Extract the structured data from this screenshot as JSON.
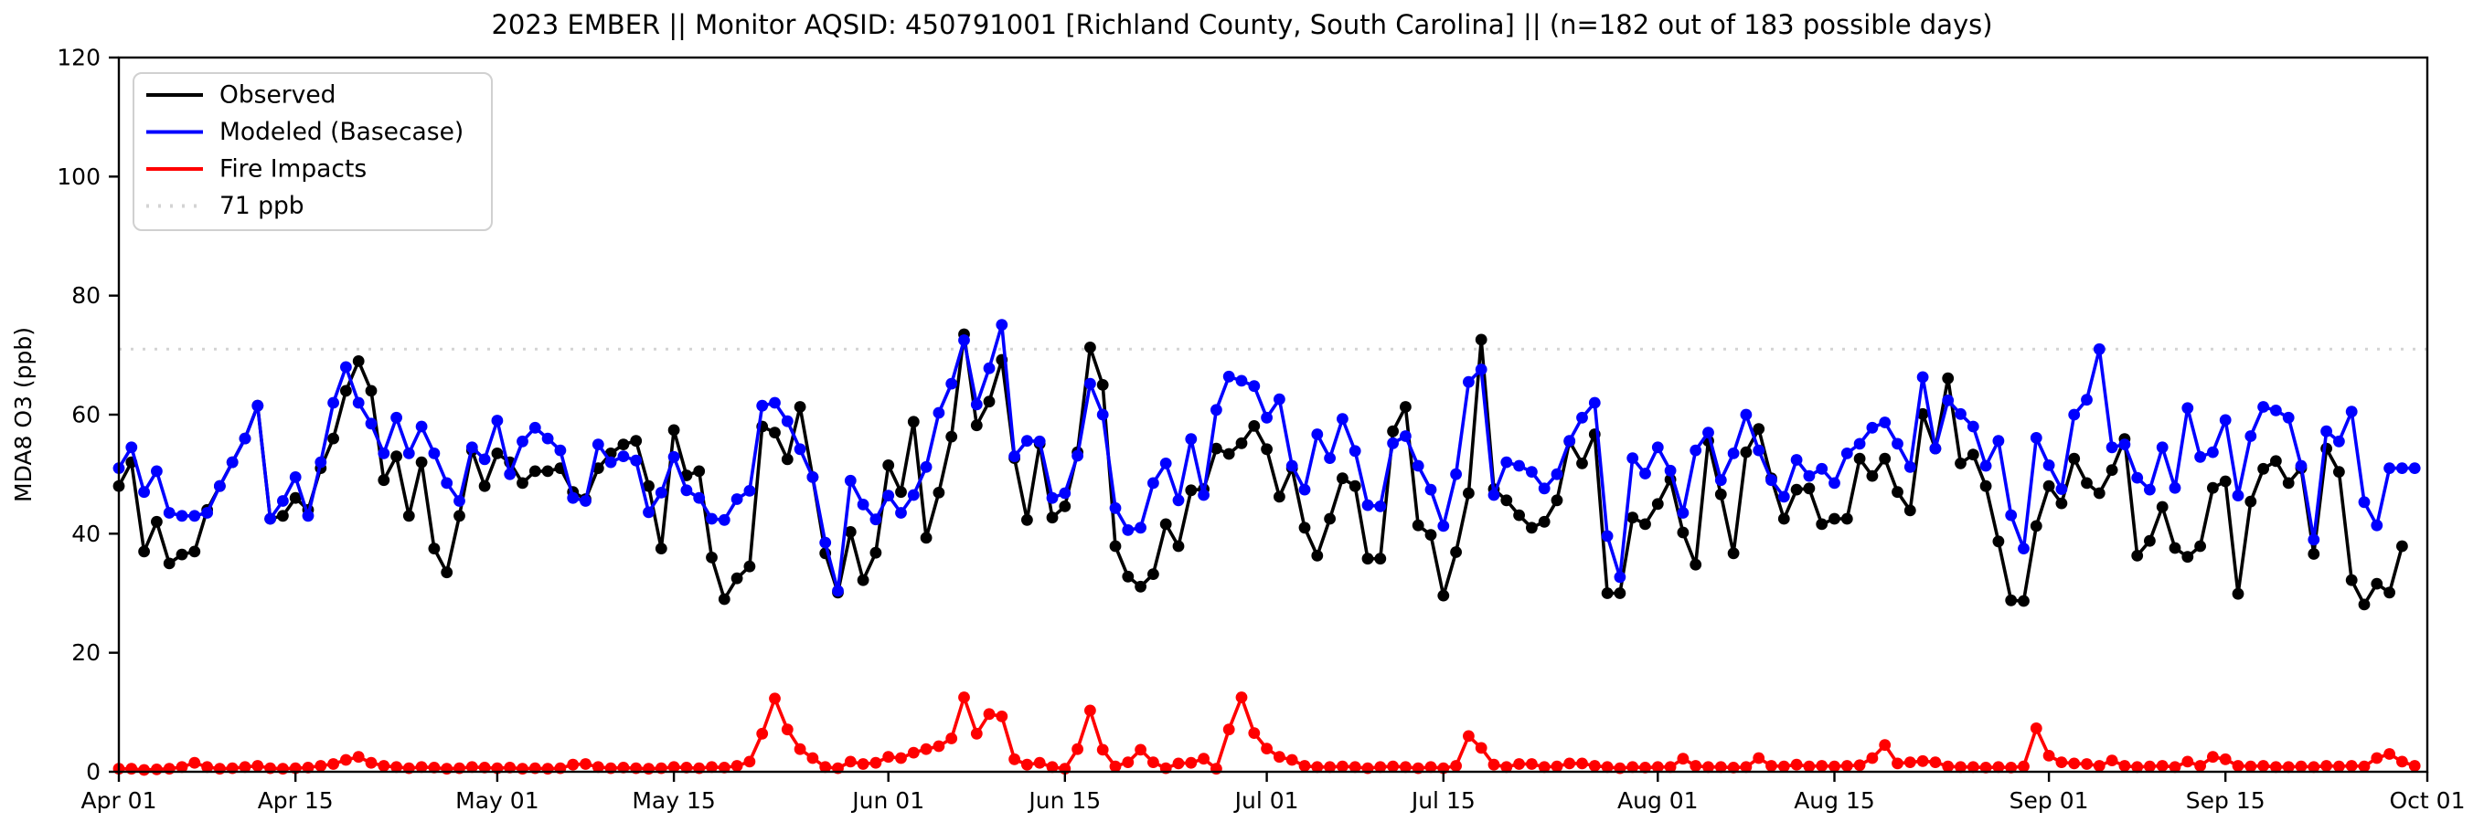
{
  "title": "2023 EMBER || Monitor AQSID: 450791001 [Richland County, South Carolina] || (n=182 out of 183 possible days)",
  "legend": {
    "entries": [
      {
        "label": "Observed",
        "color": "#000000",
        "style": "solid"
      },
      {
        "label": "Modeled (Basecase)",
        "color": "#0000ff",
        "style": "solid"
      },
      {
        "label": "Fire Impacts",
        "color": "#ff0000",
        "style": "solid"
      },
      {
        "label": "71 ppb",
        "color": "#d3d3d3",
        "style": "dotted"
      }
    ]
  },
  "chart_data": {
    "type": "line",
    "title": "2023 EMBER || Monitor AQSID: 450791001 [Richland County, South Carolina] || (n=182 out of 183 possible days)",
    "xlabel": "",
    "ylabel": "MDA8 O3 (ppb)",
    "ylim": [
      0,
      120
    ],
    "y_ticks": [
      0,
      20,
      40,
      60,
      80,
      100,
      120
    ],
    "n_days": 183,
    "x_start": "Apr 01",
    "x_end": "Oct 01",
    "x_ticks": [
      {
        "day": 0,
        "label": "Apr 01"
      },
      {
        "day": 14,
        "label": "Apr 15"
      },
      {
        "day": 30,
        "label": "May 01"
      },
      {
        "day": 44,
        "label": "May 15"
      },
      {
        "day": 61,
        "label": "Jun 01"
      },
      {
        "day": 75,
        "label": "Jun 15"
      },
      {
        "day": 91,
        "label": "Jul 01"
      },
      {
        "day": 105,
        "label": "Jul 15"
      },
      {
        "day": 122,
        "label": "Aug 01"
      },
      {
        "day": 136,
        "label": "Aug 15"
      },
      {
        "day": 153,
        "label": "Sep 01"
      },
      {
        "day": 167,
        "label": "Sep 15"
      },
      {
        "day": 183,
        "label": "Oct 01"
      }
    ],
    "reference_line": {
      "label": "71 ppb",
      "value": 71,
      "color": "#d3d3d3"
    },
    "grid": false,
    "legend_position": "upper left",
    "series": [
      {
        "name": "Observed",
        "color": "#000000",
        "values": [
          48,
          52,
          37,
          42,
          35,
          36.5,
          37,
          44,
          48,
          52,
          56,
          61.5,
          42.5,
          43,
          46,
          44,
          51,
          56,
          64,
          69,
          64,
          49,
          53,
          43,
          52,
          37.5,
          33.5,
          43,
          54,
          48,
          53.5,
          52,
          48.5,
          50.5,
          50.5,
          51,
          47,
          45.8,
          51,
          53.5,
          55,
          55.6,
          48,
          37.5,
          57.4,
          49.8,
          50.5,
          36,
          29,
          32.5,
          34.5,
          58,
          57,
          52.5,
          61.3,
          49.5,
          36.7,
          30.1,
          40.3,
          32.2,
          36.8,
          51.5,
          47,
          58.8,
          39.3,
          46.9,
          56.3,
          73.5,
          58.2,
          62.2,
          69.2,
          52.7,
          42.3,
          55.1,
          42.7,
          44.6,
          53.7,
          71.3,
          65,
          37.9,
          32.8,
          31.1,
          33.2,
          41.6,
          37.9,
          47.3,
          47.5,
          54.3,
          53.4,
          55.2,
          58.1,
          54.2,
          46.2,
          51,
          41,
          36.3,
          42.5,
          49.3,
          48,
          35.8,
          35.8,
          57.2,
          61.3,
          41.4,
          39.8,
          29.6,
          36.9,
          46.8,
          72.6,
          47.5,
          45.6,
          43.1,
          41,
          42,
          45.6,
          55.5,
          51.8,
          56.7,
          30,
          30,
          42.7,
          41.6,
          45,
          49.1,
          40.2,
          34.8,
          55.6,
          46.6,
          36.7,
          53.7,
          57.6,
          49.3,
          42.5,
          47.4,
          47.6,
          41.6,
          42.5,
          42.5,
          52.6,
          49.7,
          52.6,
          47,
          43.9,
          60.1,
          54.3,
          66.1,
          51.8,
          53.3,
          48,
          38.7,
          28.8,
          28.7,
          41.3,
          48,
          45.1,
          52.6,
          48.5,
          46.8,
          50.7,
          55.9,
          36.3,
          38.8,
          44.5,
          37.6,
          36.1,
          37.9,
          47.7,
          48.8,
          29.9,
          45.4,
          50.9,
          52.2,
          48.5,
          51,
          36.6,
          54.3,
          50.4,
          32.2,
          28.1,
          31.6,
          30.1,
          37.9,
          null
        ]
      },
      {
        "name": "Modeled (Basecase)",
        "color": "#0000ff",
        "values": [
          51,
          54.5,
          47,
          50.5,
          43.5,
          43,
          43,
          43.5,
          48,
          52,
          56,
          61.5,
          42.5,
          45.5,
          49.5,
          43,
          52,
          62,
          68,
          62,
          58.5,
          53.5,
          59.5,
          53.5,
          58,
          53.5,
          48.5,
          45.5,
          54.5,
          52.5,
          59,
          50,
          55.5,
          57.8,
          56,
          54,
          46,
          45.5,
          55,
          52,
          53,
          52.3,
          43.6,
          46.9,
          52.9,
          47.3,
          46,
          42.5,
          42.3,
          45.8,
          47.2,
          61.5,
          62,
          58.9,
          54.2,
          49.5,
          38.5,
          30.4,
          48.9,
          44.9,
          42.4,
          46.4,
          43.5,
          46.5,
          51.2,
          60.3,
          65.2,
          72.5,
          61.7,
          67.8,
          75.1,
          53,
          55.6,
          55.5,
          46,
          46.8,
          53.1,
          65.2,
          60,
          44.3,
          40.6,
          41,
          48.5,
          51.8,
          45.6,
          55.9,
          46.5,
          60.8,
          66.4,
          65.7,
          64.8,
          59.5,
          62.6,
          51.4,
          47.4,
          56.7,
          52.7,
          59.3,
          53.9,
          44.8,
          44.6,
          55.2,
          56.4,
          51.4,
          47.4,
          41.3,
          50,
          65.5,
          67.6,
          46.5,
          52,
          51.4,
          50.4,
          47.6,
          50,
          55.6,
          59.5,
          62,
          39.6,
          32.7,
          52.7,
          50.1,
          54.5,
          50.6,
          43.5,
          54,
          57,
          49,
          53.5,
          60,
          54,
          49,
          46.2,
          52.4,
          49.7,
          50.9,
          48.5,
          53.5,
          55.1,
          57.8,
          58.7,
          55.1,
          51.2,
          66.3,
          54.3,
          62.4,
          60.1,
          58,
          51.4,
          55.6,
          43.1,
          37.5,
          56.1,
          51.5,
          47.5,
          60,
          62.5,
          71,
          54.5,
          55,
          49.4,
          47.4,
          54.5,
          47.7,
          61.1,
          52.9,
          53.7,
          59.1,
          46.4,
          56.4,
          61.3,
          60.7,
          59.5,
          51.4,
          39,
          57.2,
          55.5,
          60.5,
          45.3,
          41.4,
          51,
          51,
          51
        ]
      },
      {
        "name": "Fire Impacts",
        "color": "#ff0000",
        "values": [
          0.5,
          0.5,
          0.3,
          0.4,
          0.5,
          0.8,
          1.5,
          0.8,
          0.5,
          0.6,
          0.8,
          1.0,
          0.6,
          0.5,
          0.6,
          0.7,
          1.0,
          1.3,
          2.0,
          2.5,
          1.5,
          1.0,
          0.8,
          0.6,
          0.8,
          0.7,
          0.5,
          0.6,
          0.8,
          0.7,
          0.6,
          0.7,
          0.5,
          0.6,
          0.5,
          0.6,
          1.2,
          1.3,
          0.8,
          0.6,
          0.7,
          0.6,
          0.5,
          0.6,
          0.8,
          0.7,
          0.6,
          0.8,
          0.7,
          1.0,
          1.7,
          6.4,
          12.3,
          7.1,
          3.8,
          2.3,
          0.8,
          0.6,
          1.7,
          1.3,
          1.5,
          2.5,
          2.3,
          3.2,
          3.8,
          4.3,
          5.6,
          12.5,
          6.4,
          9.7,
          9.3,
          2.1,
          1.2,
          1.5,
          0.8,
          0.5,
          3.8,
          10.3,
          3.7,
          0.9,
          1.6,
          3.7,
          1.6,
          0.6,
          1.4,
          1.5,
          2.2,
          0.5,
          7.1,
          12.5,
          6.5,
          3.9,
          2.5,
          2.0,
          1.0,
          0.8,
          0.8,
          0.9,
          0.8,
          0.6,
          0.8,
          0.9,
          0.8,
          0.6,
          0.8,
          0.6,
          1.0,
          6.0,
          4.0,
          1.2,
          0.8,
          1.3,
          1.3,
          0.8,
          0.9,
          1.4,
          1.4,
          1.0,
          0.8,
          0.6,
          0.8,
          0.7,
          0.8,
          0.8,
          2.2,
          1.0,
          0.8,
          0.8,
          0.7,
          0.8,
          2.3,
          1.0,
          0.9,
          1.2,
          0.9,
          1.0,
          0.9,
          1.0,
          1.1,
          2.3,
          4.5,
          1.4,
          1.6,
          1.8,
          1.6,
          0.9,
          0.8,
          0.8,
          0.7,
          0.8,
          0.7,
          0.9,
          7.3,
          2.7,
          1.6,
          1.4,
          1.3,
          1.0,
          1.9,
          1.0,
          0.8,
          0.9,
          1.0,
          0.8,
          1.7,
          1.0,
          2.5,
          2.1,
          1.0,
          0.9,
          1.0,
          0.8,
          0.8,
          0.9,
          0.8,
          1.0,
          0.9,
          1.0,
          0.9,
          2.3,
          3.0,
          1.7,
          1.0
        ]
      }
    ]
  }
}
